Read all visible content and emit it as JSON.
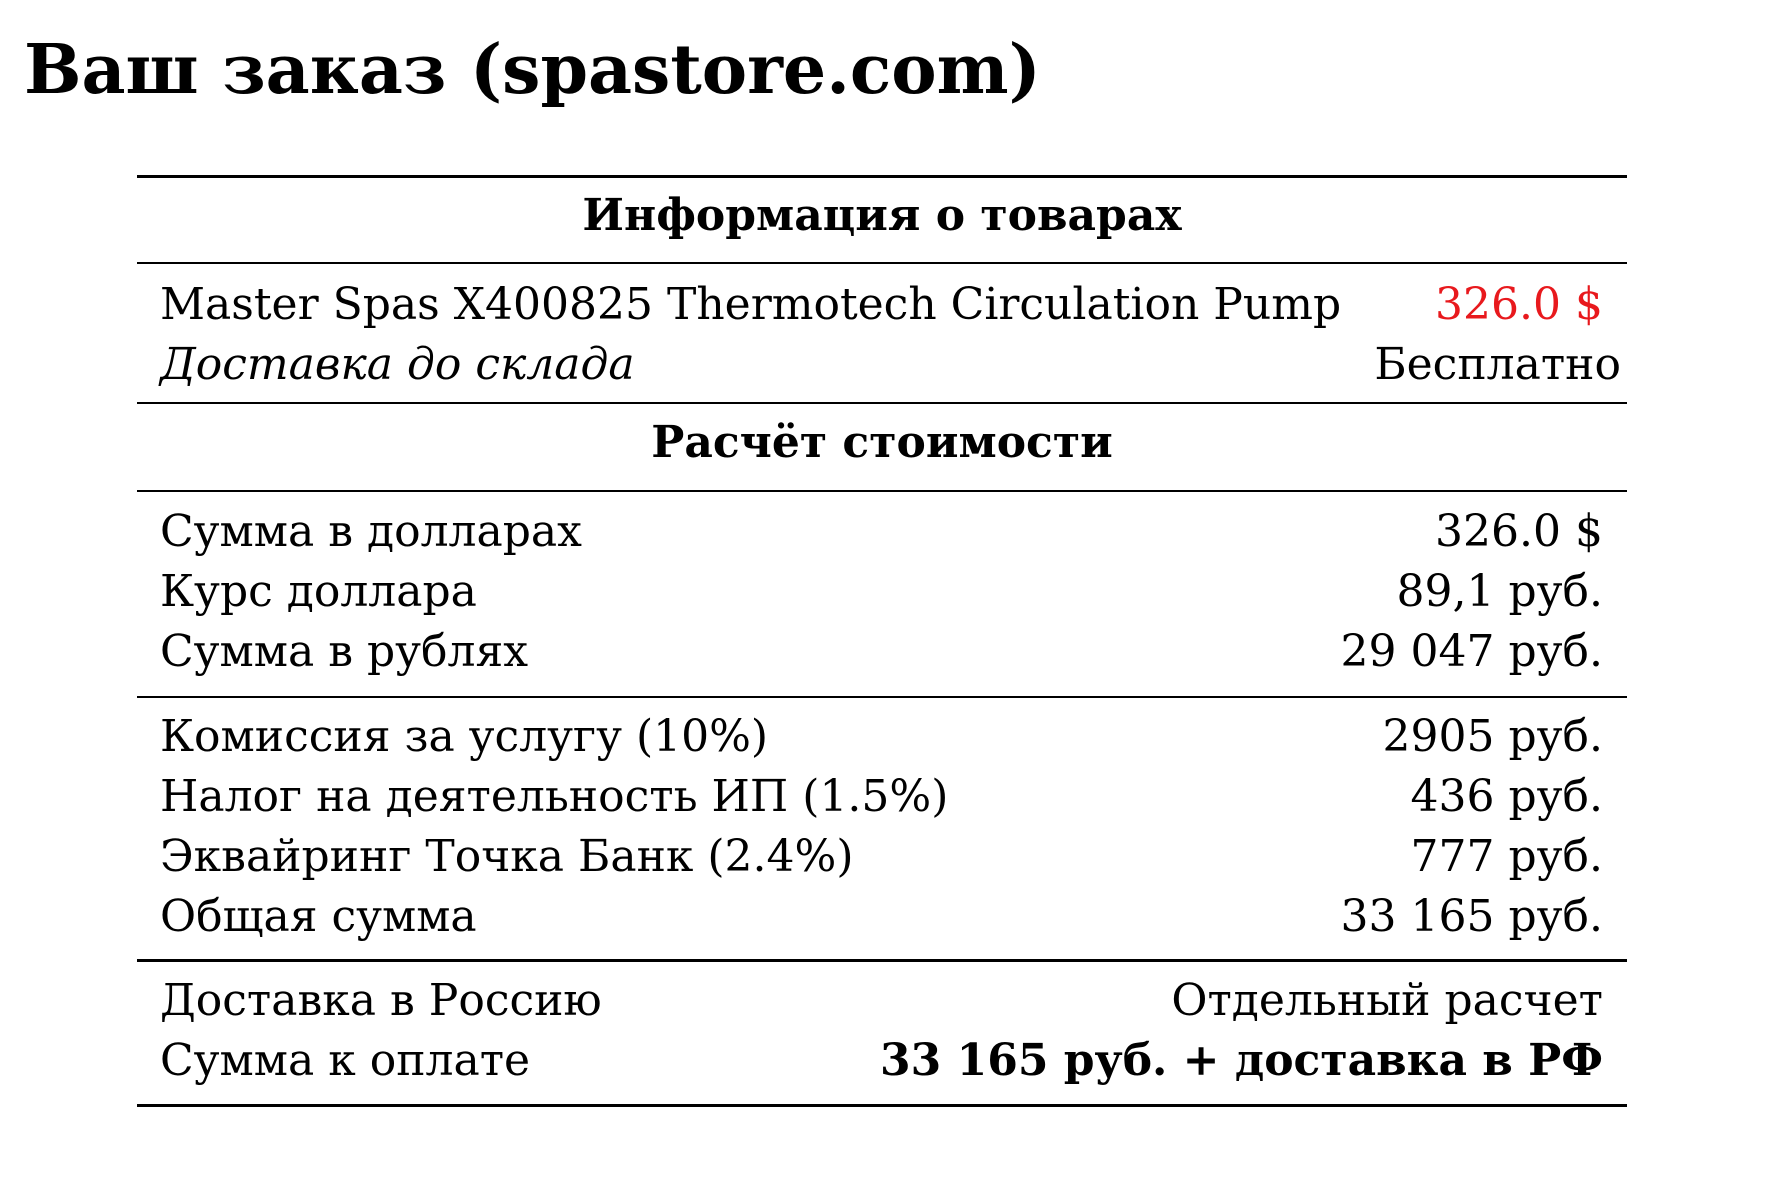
{
  "page": {
    "title": "Ваш заказ (spastore.com)"
  },
  "colors": {
    "price_accent": "#e8191d",
    "text": "#000000",
    "rules": "#000000"
  },
  "products": {
    "header": "Информация о товарах",
    "item_name": "Master Spas X400825 Thermotech Circulation Pump",
    "item_price": "326.0 $",
    "shipping_label": "Доставка до склада",
    "shipping_value": "Бесплатно"
  },
  "calculation": {
    "header": "Расчёт стоимости",
    "rows": [
      {
        "label": "Сумма в долларах",
        "value": "326.0 $"
      },
      {
        "label": "Курс доллара",
        "value": "89,1 руб."
      },
      {
        "label": "Сумма в рублях",
        "value": "29 047 руб."
      }
    ],
    "fees": [
      {
        "label": "Комиссия за услугу (10%)",
        "value": "2905 руб."
      },
      {
        "label": "Налог на деятельность ИП (1.5%)",
        "value": "436 руб."
      },
      {
        "label": "Эквайринг Точка Банк (2.4%)",
        "value": "777 руб."
      },
      {
        "label": "Общая сумма",
        "value": "33 165 руб."
      }
    ]
  },
  "payment": {
    "delivery_label": "Доставка в Россию",
    "delivery_value": "Отдельный расчет",
    "total_label": "Сумма к оплате",
    "total_value": "33 165 руб. + доставка в РФ"
  }
}
